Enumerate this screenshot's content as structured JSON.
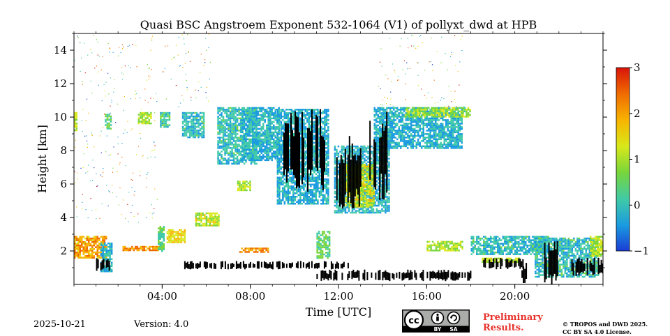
{
  "chart_data": {
    "type": "heatmap",
    "title": "Quasi BSC Angstroem Exponent 532-1064 (V1) of pollyxt_dwd at HPB",
    "xlabel": "Time [UTC]",
    "ylabel": "Height [km]",
    "xlim": [
      0,
      24
    ],
    "ylim": [
      0,
      15
    ],
    "x_ticks": [
      4,
      8,
      12,
      16,
      20
    ],
    "x_tick_labels": [
      "04:00",
      "08:00",
      "12:00",
      "16:00",
      "20:00"
    ],
    "y_ticks": [
      2,
      4,
      6,
      8,
      10,
      12,
      14
    ],
    "y_tick_labels": [
      "2",
      "4",
      "6",
      "8",
      "10",
      "12",
      "14"
    ],
    "colorbar": {
      "min": -1,
      "max": 3,
      "ticks": [
        -1,
        0,
        1,
        2,
        3
      ],
      "tick_labels": [
        "−1",
        "0",
        "1",
        "2",
        "3"
      ],
      "colors": [
        "#1a3cd6",
        "#1a9be0",
        "#3fc9a8",
        "#79d63a",
        "#d8e81a",
        "#f7b500",
        "#f06a00",
        "#d8140a"
      ]
    },
    "regions": [
      {
        "t0": 0.0,
        "t1": 0.15,
        "h0": 9.2,
        "h1": 10.3,
        "value": 1.0
      },
      {
        "t0": 0.0,
        "t1": 1.5,
        "h0": 1.6,
        "h1": 2.9,
        "value": 2.0
      },
      {
        "t0": 1.2,
        "t1": 1.7,
        "h0": 0.8,
        "h1": 2.5,
        "value": -0.2
      },
      {
        "t0": 1.4,
        "t1": 1.7,
        "h0": 9.3,
        "h1": 10.2,
        "value": 0.4
      },
      {
        "t0": 2.2,
        "t1": 3.9,
        "h0": 2.0,
        "h1": 2.3,
        "value": 2.2
      },
      {
        "t0": 2.9,
        "t1": 3.5,
        "h0": 9.6,
        "h1": 10.3,
        "value": 1.0
      },
      {
        "t0": 3.9,
        "t1": 4.3,
        "h0": 9.4,
        "h1": 10.3,
        "value": 0.2
      },
      {
        "t0": 3.8,
        "t1": 4.1,
        "h0": 2.0,
        "h1": 3.5,
        "value": 0.4
      },
      {
        "t0": 4.2,
        "t1": 5.0,
        "h0": 2.5,
        "h1": 3.3,
        "value": 1.5
      },
      {
        "t0": 4.9,
        "t1": 5.9,
        "h0": 8.8,
        "h1": 10.3,
        "value": 0.0
      },
      {
        "t0": 5.5,
        "t1": 6.6,
        "h0": 3.5,
        "h1": 4.3,
        "value": 1.2
      },
      {
        "t0": 6.5,
        "t1": 8.3,
        "h0": 7.2,
        "h1": 10.6,
        "value": 0.0
      },
      {
        "t0": 7.6,
        "t1": 9.3,
        "h0": 7.4,
        "h1": 10.6,
        "value": -0.1
      },
      {
        "t0": 7.4,
        "t1": 8.0,
        "h0": 5.6,
        "h1": 6.2,
        "value": 1.0
      },
      {
        "t0": 7.5,
        "t1": 8.8,
        "h0": 1.9,
        "h1": 2.2,
        "value": 2.2
      },
      {
        "t0": 9.2,
        "t1": 11.5,
        "h0": 4.8,
        "h1": 10.5,
        "value": -0.2
      },
      {
        "t0": 11.0,
        "t1": 11.6,
        "h0": 1.6,
        "h1": 3.2,
        "value": 0.5
      },
      {
        "t0": 11.8,
        "t1": 14.3,
        "h0": 4.3,
        "h1": 8.3,
        "value": -0.1
      },
      {
        "t0": 12.3,
        "t1": 13.6,
        "h0": 4.6,
        "h1": 7.2,
        "value": 1.2
      },
      {
        "t0": 13.6,
        "t1": 17.6,
        "h0": 8.2,
        "h1": 10.6,
        "value": -0.2
      },
      {
        "t0": 15.0,
        "t1": 18.0,
        "h0": 10.0,
        "h1": 10.6,
        "value": 0.8
      },
      {
        "t0": 16.0,
        "t1": 17.6,
        "h0": 2.0,
        "h1": 2.6,
        "value": 1.0
      },
      {
        "t0": 18.0,
        "t1": 21.5,
        "h0": 1.8,
        "h1": 2.9,
        "value": 0.0
      },
      {
        "t0": 18.5,
        "t1": 20.2,
        "h0": 1.3,
        "h1": 1.6,
        "value": 1.2
      },
      {
        "t0": 20.9,
        "t1": 23.8,
        "h0": 0.5,
        "h1": 2.8,
        "value": 0.0
      },
      {
        "t0": 23.4,
        "t1": 24.0,
        "h0": 1.7,
        "h1": 2.9,
        "value": 1.0
      }
    ],
    "noise_regions": [
      {
        "t0": 0.0,
        "t1": 3.8,
        "h0": 3.5,
        "h1": 15.0
      },
      {
        "t0": 4.0,
        "t1": 6.2,
        "h0": 10.3,
        "h1": 15.0
      },
      {
        "t0": 13.8,
        "t1": 17.7,
        "h0": 10.6,
        "h1": 15.0
      }
    ],
    "missing_regions": [
      {
        "t0": 9.5,
        "t1": 11.4,
        "h0": 5.5,
        "h1": 10.5
      },
      {
        "t0": 11.9,
        "t1": 13.0,
        "h0": 4.5,
        "h1": 9.0
      },
      {
        "t0": 13.4,
        "t1": 14.2,
        "h0": 5.0,
        "h1": 10.5
      },
      {
        "t0": 1.0,
        "t1": 1.6,
        "h0": 0.8,
        "h1": 1.6
      },
      {
        "t0": 5.0,
        "t1": 12.5,
        "h0": 0.9,
        "h1": 1.4
      },
      {
        "t0": 11.0,
        "t1": 18.0,
        "h0": 0.2,
        "h1": 0.9
      },
      {
        "t0": 18.5,
        "t1": 20.5,
        "h0": 0.9,
        "h1": 1.6
      },
      {
        "t0": 20.3,
        "t1": 20.5,
        "h0": 0.0,
        "h1": 1.4
      },
      {
        "t0": 21.2,
        "t1": 22.0,
        "h0": 0.0,
        "h1": 2.6
      },
      {
        "t0": 22.5,
        "t1": 24.0,
        "h0": 0.5,
        "h1": 1.6
      }
    ]
  },
  "footer": {
    "date": "2025-10-21",
    "version": "Version: 4.0",
    "preliminary_line1": "Preliminary",
    "preliminary_line2": "Results.",
    "copyright_line1": "© TROPOS and DWD 2025.",
    "copyright_line2": "CC BY SA 4.0 License.",
    "license_badge": {
      "left": "BY",
      "right": "SA",
      "icon": "creative-commons-icon"
    }
  }
}
